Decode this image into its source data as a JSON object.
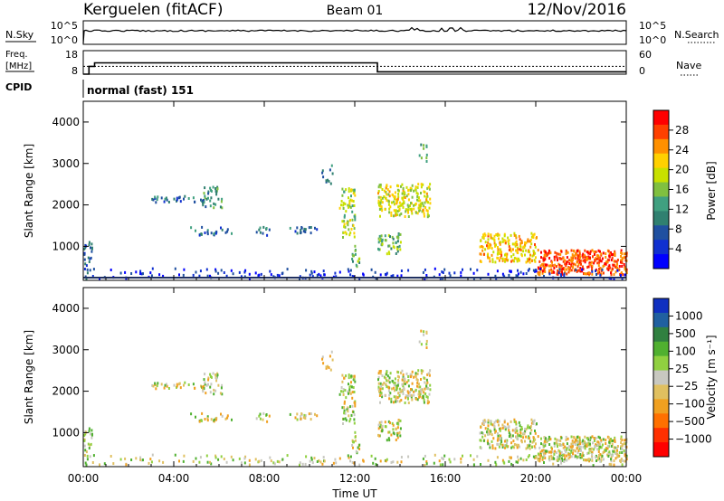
{
  "header": {
    "station": "Kerguelen (fitACF)",
    "beam": "Beam 01",
    "date": "12/Nov/2016"
  },
  "noise_panel": {
    "left_label": "N.Sky",
    "right_label": "N.Search",
    "left_ticks": [
      "10^5",
      "10^0"
    ],
    "right_ticks": [
      "10^5",
      "10^0"
    ]
  },
  "freq_panel": {
    "left_label_line1": "Freq.",
    "left_label_line2": "[MHz]",
    "right_label": "Nave",
    "left_ticks": [
      "18",
      "8"
    ],
    "right_ticks": [
      "60",
      "0"
    ],
    "freq_steps": [
      {
        "t": 0.0,
        "mhz": 8.0
      },
      {
        "t": 0.25,
        "mhz": 8.0
      },
      {
        "t": 0.25,
        "mhz": 11.3
      },
      {
        "t": 0.5,
        "mhz": 11.3
      },
      {
        "t": 0.5,
        "mhz": 12.8
      },
      {
        "t": 13.0,
        "mhz": 12.8
      },
      {
        "t": 13.0,
        "mhz": 9.0
      },
      {
        "t": 24.0,
        "mhz": 9.0
      }
    ],
    "nave_level": 20
  },
  "cpid": {
    "label": "CPID",
    "program": "normal (fast) 151"
  },
  "chart_data": [
    {
      "type": "heatmap",
      "title": "",
      "xlabel": "",
      "ylabel": "Slant Range [km]",
      "xlim": [
        0,
        24
      ],
      "ylim": [
        180,
        4500
      ],
      "x_ticks": [
        "00:00",
        "04:00",
        "08:00",
        "12:00",
        "16:00",
        "20:00",
        "00:00"
      ],
      "y_ticks": [
        1000,
        2000,
        3000,
        4000
      ],
      "colorbar": {
        "label": "Power [dB]",
        "ticks": [
          "28",
          "24",
          "20",
          "16",
          "12",
          "8",
          "4"
        ],
        "colors": [
          "#ff0000",
          "#ff4000",
          "#ff9000",
          "#ffd000",
          "#c8e000",
          "#80c040",
          "#40a080",
          "#308070",
          "#2050a0",
          "#1030d0",
          "#0000ff"
        ]
      },
      "regions": [
        {
          "t0": 3.0,
          "t1": 5.7,
          "r0": 1950,
          "r1": 2250,
          "level": "mixed"
        },
        {
          "t0": 4.6,
          "t1": 6.5,
          "r0": 1200,
          "r1": 1500,
          "level": "mixed"
        },
        {
          "t0": 10.5,
          "t1": 12.0,
          "r0": 1600,
          "r1": 3600,
          "level": "mixed"
        },
        {
          "t0": 13.0,
          "t1": 15.5,
          "r0": 1600,
          "r1": 2800,
          "level": "high"
        },
        {
          "t0": 17.5,
          "t1": 24.0,
          "r0": 200,
          "r1": 1400,
          "level": "high"
        },
        {
          "t0": 0.0,
          "t1": 24.0,
          "r0": 180,
          "r1": 300,
          "level": "low"
        }
      ]
    },
    {
      "type": "heatmap",
      "title": "",
      "xlabel": "Time UT",
      "ylabel": "Slant Range [km]",
      "xlim": [
        0,
        24
      ],
      "ylim": [
        180,
        4500
      ],
      "x_ticks": [
        "00:00",
        "04:00",
        "08:00",
        "12:00",
        "16:00",
        "20:00",
        "00:00"
      ],
      "y_ticks": [
        1000,
        2000,
        3000,
        4000
      ],
      "colorbar": {
        "label": "Velocity [m s⁻¹]",
        "ticks": [
          "1000",
          "500",
          "100",
          "25",
          "−25",
          "−100",
          "−500",
          "−1000"
        ],
        "colors": [
          "#1030c0",
          "#2060a0",
          "#308040",
          "#50b030",
          "#90d040",
          "#c8c8c0",
          "#e0c060",
          "#f0a020",
          "#ff7000",
          "#ff3000",
          "#ff0000"
        ]
      }
    }
  ]
}
